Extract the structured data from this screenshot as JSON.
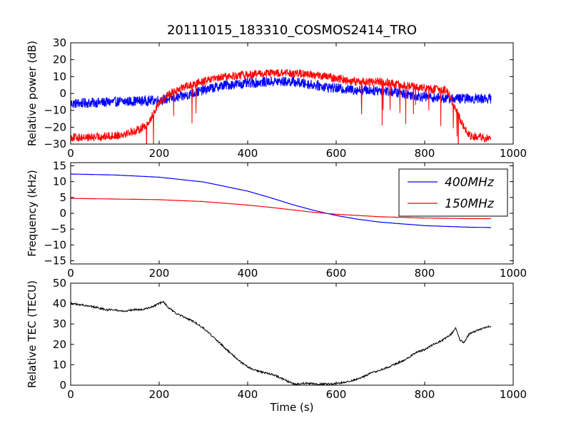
{
  "figure": {
    "title": "20111015_183310_COSMOS2414_TRO"
  },
  "chart_data": [
    {
      "type": "line",
      "ylabel": "Relative power (dB)",
      "xlabel": "",
      "xlim": [
        0,
        1000
      ],
      "ylim": [
        -30,
        30
      ],
      "xticks": [
        "0",
        "200",
        "400",
        "600",
        "800",
        "1000"
      ],
      "yticks": [
        "−30",
        "−20",
        "−10",
        "0",
        "10",
        "20",
        "30"
      ],
      "grid": false,
      "series": [
        {
          "color": "#0000ff",
          "x": [
            0,
            100,
            200,
            250,
            300,
            350,
            400,
            450,
            500,
            550,
            600,
            650,
            700,
            750,
            800,
            850,
            900,
            950
          ],
          "y": [
            -6,
            -5,
            -4,
            -2,
            2,
            5,
            6,
            7,
            7,
            5,
            3,
            2,
            2,
            0,
            -2,
            -3,
            -3,
            -3
          ]
        },
        {
          "color": "#ff0000",
          "x": [
            0,
            50,
            100,
            150,
            175,
            200,
            225,
            250,
            300,
            350,
            400,
            450,
            500,
            550,
            600,
            650,
            700,
            750,
            800,
            850,
            880,
            900,
            950
          ],
          "y": [
            -26,
            -26,
            -25,
            -22,
            -18,
            -5,
            0,
            3,
            7,
            10,
            11,
            12,
            12,
            11,
            9,
            7,
            7,
            5,
            3,
            2,
            -15,
            -25,
            -27
          ]
        }
      ]
    },
    {
      "type": "line",
      "ylabel": "Frequency (kHz)",
      "xlabel": "",
      "xlim": [
        0,
        1000
      ],
      "ylim": [
        -16,
        16
      ],
      "xticks": [
        "0",
        "200",
        "400",
        "600",
        "800",
        "1000"
      ],
      "yticks": [
        "−15",
        "−10",
        "−5",
        "0",
        "5",
        "10",
        "15"
      ],
      "grid": false,
      "legend_position": "top-right",
      "series": [
        {
          "name": "400MHz",
          "color": "#0000ff",
          "x": [
            0,
            100,
            200,
            300,
            400,
            450,
            500,
            550,
            600,
            650,
            700,
            800,
            900,
            950
          ],
          "y": [
            12.4,
            12.1,
            11.4,
            9.9,
            7.0,
            5.0,
            2.8,
            0.9,
            -0.7,
            -1.9,
            -2.8,
            -3.9,
            -4.4,
            -4.5
          ]
        },
        {
          "name": "150MHz",
          "color": "#ff0000",
          "x": [
            0,
            100,
            200,
            300,
            400,
            450,
            500,
            550,
            600,
            650,
            700,
            800,
            900,
            950
          ],
          "y": [
            4.7,
            4.5,
            4.3,
            3.7,
            2.6,
            1.9,
            1.1,
            0.3,
            -0.3,
            -0.7,
            -1.1,
            -1.5,
            -1.7,
            -1.7
          ]
        }
      ]
    },
    {
      "type": "line",
      "ylabel": "Relative TEC (TECU)",
      "xlabel": "Time (s)",
      "xlim": [
        0,
        1000
      ],
      "ylim": [
        0,
        50
      ],
      "xticks": [
        "0",
        "200",
        "400",
        "600",
        "800",
        "1000"
      ],
      "yticks": [
        "0",
        "10",
        "20",
        "30",
        "40",
        "50"
      ],
      "grid": false,
      "series": [
        {
          "color": "#000000",
          "x": [
            0,
            20,
            40,
            60,
            80,
            100,
            120,
            140,
            160,
            180,
            200,
            210,
            220,
            240,
            260,
            280,
            300,
            320,
            340,
            360,
            380,
            400,
            420,
            440,
            460,
            480,
            500,
            510,
            520,
            540,
            560,
            580,
            600,
            620,
            640,
            660,
            680,
            700,
            720,
            740,
            760,
            780,
            800,
            820,
            840,
            860,
            870,
            880,
            890,
            900,
            920,
            940,
            950
          ],
          "y": [
            40,
            39.5,
            39,
            38,
            37,
            37,
            36,
            37,
            37,
            38,
            40,
            41,
            38,
            35,
            33,
            31,
            28,
            24,
            20,
            16,
            12,
            9,
            7,
            6,
            5,
            3,
            1,
            0.3,
            1,
            0.8,
            0.6,
            0.6,
            0.8,
            1.5,
            2.5,
            4,
            6,
            7.5,
            9,
            11,
            13,
            16,
            17.5,
            20,
            22,
            25,
            28,
            22,
            21,
            25,
            27,
            28.5,
            29
          ]
        }
      ]
    }
  ]
}
